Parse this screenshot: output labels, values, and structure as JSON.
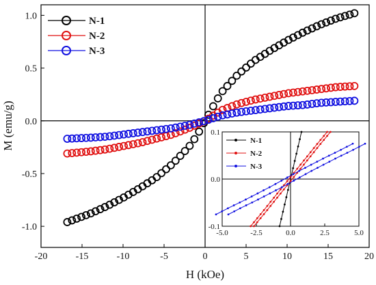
{
  "chart_data": [
    {
      "type": "scatter",
      "title": "",
      "xlabel": "H (kOe)",
      "ylabel": "M (emu/g)",
      "xlim": [
        -20,
        20
      ],
      "ylim": [
        -1.2,
        1.1
      ],
      "xticks": [
        -20,
        -15,
        -10,
        -5,
        0,
        5,
        10,
        15,
        20
      ],
      "yticks": [
        -1.0,
        -0.5,
        0.0,
        0.5,
        1.0
      ],
      "xtick_labels": [
        "-20",
        "-15",
        "-10",
        "-5",
        "0",
        "5",
        "10",
        "15",
        "20"
      ],
      "ytick_labels": [
        "-1.0",
        "-0.5",
        "0.0",
        "0.5",
        "1.0"
      ],
      "legend_position": "top-left",
      "grid": false,
      "series": [
        {
          "name": "N-1",
          "color": "#000000",
          "marker": "open-circle",
          "x": [
            -16.8,
            -14,
            -12,
            -10,
            -8,
            -6,
            -4,
            -2,
            -1,
            0,
            1,
            2,
            4,
            6,
            8,
            10,
            12,
            14,
            16,
            18.2
          ],
          "y": [
            -0.96,
            -0.88,
            -0.81,
            -0.73,
            -0.64,
            -0.54,
            -0.41,
            -0.25,
            -0.14,
            0.0,
            0.14,
            0.27,
            0.44,
            0.57,
            0.67,
            0.76,
            0.84,
            0.91,
            0.97,
            1.02
          ]
        },
        {
          "name": "N-2",
          "color": "#e01010",
          "marker": "open-circle",
          "x": [
            -16.8,
            -14,
            -12,
            -10,
            -8,
            -6,
            -4,
            -2,
            0,
            2,
            4,
            6,
            8,
            10,
            12,
            14,
            16,
            18.2
          ],
          "y": [
            -0.31,
            -0.29,
            -0.27,
            -0.24,
            -0.21,
            -0.17,
            -0.13,
            -0.07,
            0.0,
            0.1,
            0.16,
            0.2,
            0.23,
            0.26,
            0.28,
            0.3,
            0.32,
            0.33
          ]
        },
        {
          "name": "N-3",
          "color": "#1010e0",
          "marker": "open-circle",
          "x": [
            -16.8,
            -14,
            -12,
            -10,
            -8,
            -6,
            -4,
            -2,
            0,
            2,
            4,
            6,
            8,
            10,
            12,
            14,
            16,
            18.2
          ],
          "y": [
            -0.17,
            -0.16,
            -0.15,
            -0.13,
            -0.11,
            -0.09,
            -0.07,
            -0.04,
            0.0,
            0.05,
            0.08,
            0.1,
            0.12,
            0.14,
            0.15,
            0.17,
            0.18,
            0.19
          ]
        }
      ]
    },
    {
      "type": "line",
      "title": "",
      "xlabel": "",
      "ylabel": "",
      "xlim": [
        -5,
        5
      ],
      "ylim": [
        -0.1,
        0.1
      ],
      "xticks": [
        -5,
        -2.5,
        0,
        2.5,
        5
      ],
      "yticks": [
        -0.1,
        0.0,
        0.1
      ],
      "xtick_labels": [
        "-5.0",
        "-2.5",
        "0.0",
        "2.5",
        "5.0"
      ],
      "ytick_labels": [
        "-0.1",
        "0.0",
        "0.1"
      ],
      "legend_position": "top-left",
      "grid": false,
      "series": [
        {
          "name": "N-1",
          "color": "#000000",
          "x": [
            -0.8,
            -0.6,
            -0.4,
            -0.2,
            0,
            0.2,
            0.4,
            0.6,
            0.8
          ],
          "y": [
            -0.1,
            -0.075,
            -0.05,
            -0.025,
            0.0,
            0.025,
            0.05,
            0.075,
            0.1
          ]
        },
        {
          "name": "N-2",
          "color": "#e01010",
          "x": [
            -2.8,
            -2,
            -1,
            0,
            1,
            2,
            2.8
          ],
          "y": [
            -0.1,
            -0.072,
            -0.036,
            0.0,
            0.036,
            0.072,
            0.1
          ]
        },
        {
          "name": "N-3",
          "color": "#1010e0",
          "x": [
            -5,
            -4,
            -3,
            -2,
            -1,
            0,
            1,
            2,
            3,
            4,
            5
          ],
          "y": [
            -0.075,
            -0.06,
            -0.046,
            -0.031,
            -0.016,
            0.0,
            0.016,
            0.031,
            0.046,
            0.06,
            0.075
          ]
        }
      ]
    }
  ]
}
